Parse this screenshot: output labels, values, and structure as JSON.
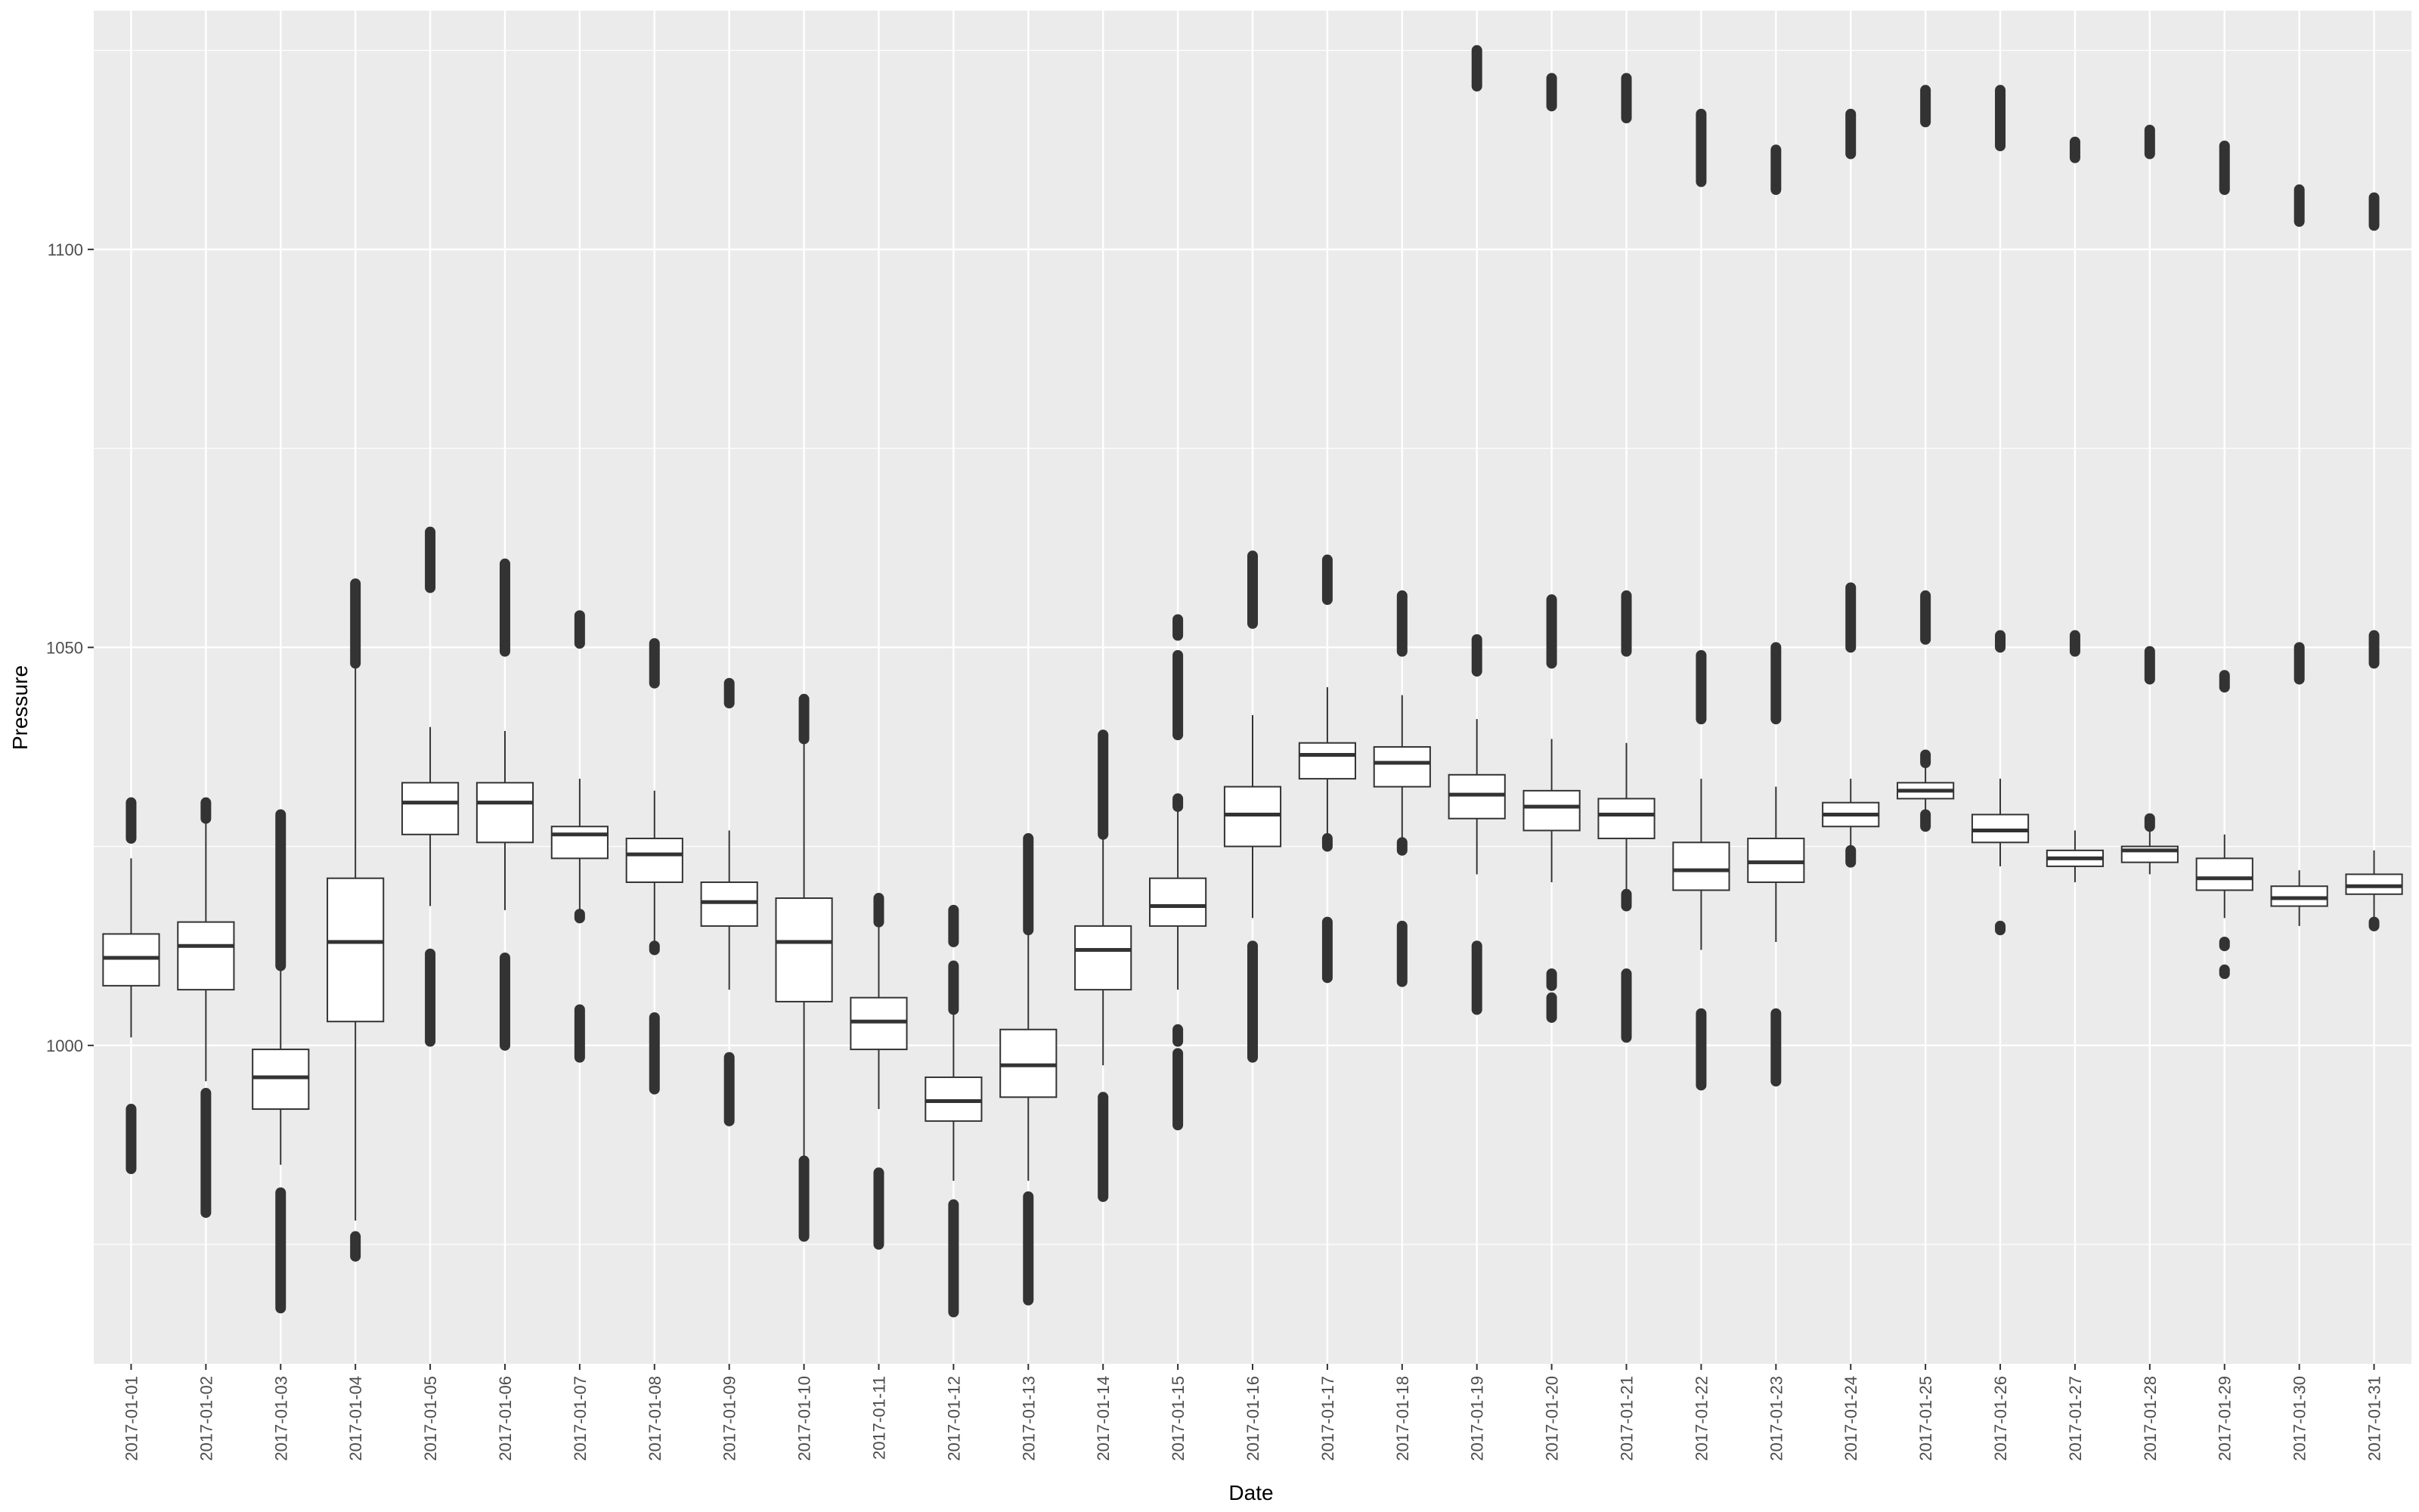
{
  "chart_data": {
    "type": "boxplot",
    "xlabel": "Date",
    "ylabel": "Pressure",
    "ylim": [
      960,
      1130
    ],
    "y_ticks": [
      1000,
      1050,
      1100
    ],
    "grid": true,
    "legend": "none",
    "colors": {
      "panel": "#ebebeb",
      "grid": "#ffffff",
      "box_fill": "#ffffff",
      "box_stroke": "#333333",
      "outlier": "#333333",
      "tick_text": "#4d4d4d"
    },
    "categories": [
      "2017-01-01",
      "2017-01-02",
      "2017-01-03",
      "2017-01-04",
      "2017-01-05",
      "2017-01-06",
      "2017-01-07",
      "2017-01-08",
      "2017-01-09",
      "2017-01-10",
      "2017-01-11",
      "2017-01-12",
      "2017-01-13",
      "2017-01-14",
      "2017-01-15",
      "2017-01-16",
      "2017-01-17",
      "2017-01-18",
      "2017-01-19",
      "2017-01-20",
      "2017-01-21",
      "2017-01-22",
      "2017-01-23",
      "2017-01-24",
      "2017-01-25",
      "2017-01-26",
      "2017-01-27",
      "2017-01-28",
      "2017-01-29",
      "2017-01-30",
      "2017-01-31"
    ],
    "boxes": [
      {
        "lw": 1001,
        "q1": 1007.5,
        "med": 1011,
        "q3": 1014,
        "uw": 1023.5,
        "out": [
          [
            984.5,
            992
          ],
          [
            1026,
            1030.5
          ]
        ]
      },
      {
        "lw": 995.5,
        "q1": 1007,
        "med": 1012.5,
        "q3": 1015.5,
        "uw": 1028,
        "out": [
          [
            979,
            994
          ],
          [
            1028.5,
            1030.5
          ]
        ]
      },
      {
        "lw": 985,
        "q1": 992,
        "med": 996,
        "q3": 999.5,
        "uw": 1010,
        "out": [
          [
            967,
            981.5
          ],
          [
            1010,
            1029
          ]
        ]
      },
      {
        "lw": 978,
        "q1": 1003,
        "med": 1013,
        "q3": 1021,
        "uw": 1048,
        "out": [
          [
            973.5,
            976
          ],
          [
            1048,
            1058
          ]
        ]
      },
      {
        "lw": 1017.5,
        "q1": 1026.5,
        "med": 1030.5,
        "q3": 1033,
        "uw": 1040,
        "out": [
          [
            1000.5,
            1011.5
          ],
          [
            1057.5,
            1064.5
          ]
        ]
      },
      {
        "lw": 1017,
        "q1": 1025.5,
        "med": 1030.5,
        "q3": 1033,
        "uw": 1039.5,
        "out": [
          [
            1000,
            1011
          ],
          [
            1049.5,
            1060.5
          ]
        ]
      },
      {
        "lw": 1016.5,
        "q1": 1023.5,
        "med": 1026.5,
        "q3": 1027.5,
        "uw": 1033.5,
        "out": [
          [
            998.5,
            1004.5
          ],
          [
            1016,
            1016.5
          ],
          [
            1050.5,
            1054
          ]
        ]
      },
      {
        "lw": 1012.5,
        "q1": 1020.5,
        "med": 1024,
        "q3": 1026,
        "uw": 1032,
        "out": [
          [
            994.5,
            1003.5
          ],
          [
            1012,
            1012.5
          ],
          [
            1045.5,
            1050.5
          ]
        ]
      },
      {
        "lw": 1007,
        "q1": 1015,
        "med": 1018,
        "q3": 1020.5,
        "uw": 1027,
        "out": [
          [
            990.5,
            998.5
          ],
          [
            1043,
            1045.5
          ]
        ]
      },
      {
        "lw": 985.5,
        "q1": 1005.5,
        "med": 1013,
        "q3": 1018.5,
        "uw": 1038.5,
        "out": [
          [
            976,
            985.5
          ],
          [
            1038.5,
            1043.5
          ]
        ]
      },
      {
        "lw": 992,
        "q1": 999.5,
        "med": 1003,
        "q3": 1006,
        "uw": 1015.5,
        "out": [
          [
            975,
            984
          ],
          [
            1015.5,
            1018.5
          ]
        ]
      },
      {
        "lw": 983,
        "q1": 990.5,
        "med": 993,
        "q3": 996,
        "uw": 1004.5,
        "out": [
          [
            966.5,
            980
          ],
          [
            1004.5,
            1010
          ],
          [
            1013,
            1017
          ]
        ]
      },
      {
        "lw": 983,
        "q1": 993.5,
        "med": 997.5,
        "q3": 1002,
        "uw": 1014.5,
        "out": [
          [
            968,
            981
          ],
          [
            1014.5,
            1026
          ]
        ]
      },
      {
        "lw": 997.5,
        "q1": 1007,
        "med": 1012,
        "q3": 1015,
        "uw": 1026.5,
        "out": [
          [
            981,
            993.5
          ],
          [
            1026.5,
            1039
          ]
        ]
      },
      {
        "lw": 1007,
        "q1": 1015,
        "med": 1017.5,
        "q3": 1021,
        "uw": 1030,
        "out": [
          [
            990,
            999
          ],
          [
            1000.5,
            1002
          ],
          [
            1030,
            1031
          ],
          [
            1039,
            1049
          ],
          [
            1051.5,
            1053.5
          ]
        ]
      },
      {
        "lw": 1016,
        "q1": 1025,
        "med": 1029,
        "q3": 1032.5,
        "uw": 1041.5,
        "out": [
          [
            998.5,
            1012.5
          ],
          [
            1053,
            1061.5
          ]
        ]
      },
      {
        "lw": 1026.5,
        "q1": 1033.5,
        "med": 1036.5,
        "q3": 1038,
        "uw": 1045,
        "out": [
          [
            1008.5,
            1015.5
          ],
          [
            1025,
            1026
          ],
          [
            1056,
            1061
          ]
        ]
      },
      {
        "lw": 1025.5,
        "q1": 1032.5,
        "med": 1035.5,
        "q3": 1037.5,
        "uw": 1044,
        "out": [
          [
            1008,
            1015
          ],
          [
            1024.5,
            1025.5
          ],
          [
            1049.5,
            1056.5
          ]
        ]
      },
      {
        "lw": 1021.5,
        "q1": 1028.5,
        "med": 1031.5,
        "q3": 1034,
        "uw": 1041,
        "out": [
          [
            1004.5,
            1012.5
          ],
          [
            1047,
            1051
          ],
          [
            1120.5,
            1125
          ]
        ]
      },
      {
        "lw": 1020.5,
        "q1": 1027,
        "med": 1030,
        "q3": 1032,
        "uw": 1038.5,
        "out": [
          [
            1003.5,
            1006
          ],
          [
            1007.5,
            1009
          ],
          [
            1048,
            1056
          ],
          [
            1118,
            1121.5
          ]
        ]
      },
      {
        "lw": 1019,
        "q1": 1026,
        "med": 1029,
        "q3": 1031,
        "uw": 1038,
        "out": [
          [
            1001,
            1009
          ],
          [
            1017.5,
            1019
          ],
          [
            1049.5,
            1056.5
          ],
          [
            1116.5,
            1121.5
          ]
        ]
      },
      {
        "lw": 1012,
        "q1": 1019.5,
        "med": 1022,
        "q3": 1025.5,
        "uw": 1033.5,
        "out": [
          [
            995,
            1004
          ],
          [
            1041,
            1049
          ],
          [
            1108.5,
            1117
          ]
        ]
      },
      {
        "lw": 1013,
        "q1": 1020.5,
        "med": 1023,
        "q3": 1026,
        "uw": 1032.5,
        "out": [
          [
            995.5,
            1004
          ],
          [
            1041,
            1050
          ],
          [
            1107.5,
            1112.5
          ]
        ]
      },
      {
        "lw": 1025,
        "q1": 1027.5,
        "med": 1029,
        "q3": 1030.5,
        "uw": 1033.5,
        "out": [
          [
            1023,
            1024.5
          ],
          [
            1050,
            1057.5
          ],
          [
            1112,
            1117
          ]
        ]
      },
      {
        "lw": 1029,
        "q1": 1031,
        "med": 1032,
        "q3": 1033,
        "uw": 1035,
        "out": [
          [
            1027.5,
            1029
          ],
          [
            1035.5,
            1036.5
          ],
          [
            1051,
            1056.5
          ],
          [
            1116,
            1120
          ]
        ]
      },
      {
        "lw": 1022.5,
        "q1": 1025.5,
        "med": 1027,
        "q3": 1029,
        "uw": 1033.5,
        "out": [
          [
            1014.5,
            1015
          ],
          [
            1050,
            1051.5
          ],
          [
            1113,
            1120
          ]
        ]
      },
      {
        "lw": 1020.5,
        "q1": 1022.5,
        "med": 1023.5,
        "q3": 1024.5,
        "uw": 1027,
        "out": [
          [
            1049.5,
            1051.5
          ],
          [
            1111.5,
            1113.5
          ]
        ]
      },
      {
        "lw": 1021.5,
        "q1": 1023,
        "med": 1024.5,
        "q3": 1025,
        "uw": 1027,
        "out": [
          [
            1027.5,
            1028.5
          ],
          [
            1046,
            1049.5
          ],
          [
            1112,
            1115
          ]
        ]
      },
      {
        "lw": 1016,
        "q1": 1019.5,
        "med": 1021,
        "q3": 1023.5,
        "uw": 1026.5,
        "out": [
          [
            1009,
            1009.5
          ],
          [
            1012.5,
            1013
          ],
          [
            1045,
            1046.5
          ],
          [
            1107.5,
            1113
          ]
        ]
      },
      {
        "lw": 1015,
        "q1": 1017.5,
        "med": 1018.5,
        "q3": 1020,
        "uw": 1022,
        "out": [
          [
            1046,
            1050
          ],
          [
            1103.5,
            1107.5
          ]
        ]
      },
      {
        "lw": 1015.5,
        "q1": 1019,
        "med": 1020,
        "q3": 1021.5,
        "uw": 1024.5,
        "out": [
          [
            1015,
            1015.5
          ],
          [
            1048,
            1051.5
          ],
          [
            1103,
            1106.5
          ]
        ]
      }
    ]
  }
}
